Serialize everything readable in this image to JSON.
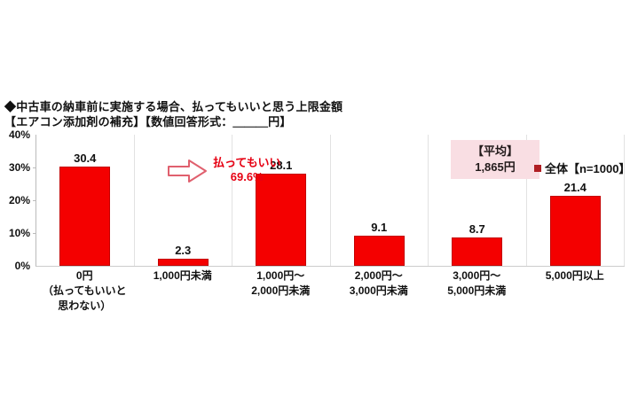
{
  "header": {
    "title_line1": "◆中古車の納車前に実施する場合、払ってもいいと思う上限金額",
    "title_line2": "【エアコン添加剤の補充】【数値回答形式：＿＿＿円】"
  },
  "annotation": {
    "label": "払ってもいい",
    "value": "69.6%"
  },
  "average_box": {
    "label": "【平均】",
    "value": "1,865円"
  },
  "legend": {
    "label": "全体【n=1000】"
  },
  "colors": {
    "bar_fill": "#f40000",
    "bar_border": "#c40000",
    "accent_red": "#e60012",
    "average_box_bg": "#f9dee3",
    "legend_square": "#b01e23"
  },
  "chart_data": {
    "type": "bar",
    "title": "◆中古車の納車前に実施する場合、払ってもいいと思う上限金額【エアコン添加剤の補充】【数値回答形式：＿＿＿円】",
    "categories": [
      "0円（払ってもいいと思わない）",
      "1,000円未満",
      "1,000円～2,000円未満",
      "2,000円～3,000円未満",
      "3,000円～5,000円未満",
      "5,000円以上"
    ],
    "categories_display": [
      "0円\n（払ってもいいと\n思わない）",
      "1,000円未満",
      "1,000円～\n2,000円未満",
      "2,000円～\n3,000円未満",
      "3,000円～\n5,000円未満",
      "5,000円以上"
    ],
    "values": [
      30.4,
      2.3,
      28.1,
      9.1,
      8.7,
      21.4
    ],
    "value_labels": [
      "30.4",
      "2.3",
      "28.1",
      "9.1",
      "8.7",
      "21.4"
    ],
    "xlabel": "",
    "ylabel": "%",
    "ylim": [
      0,
      40
    ],
    "yticks": [
      "40%",
      "30%",
      "20%",
      "10%",
      "0%"
    ],
    "annotation": "払ってもいい 69.6%",
    "average": "1,865円",
    "series_name": "全体【n=1000】",
    "legend_position": "top-right",
    "grid": "vertical-category-separators"
  }
}
